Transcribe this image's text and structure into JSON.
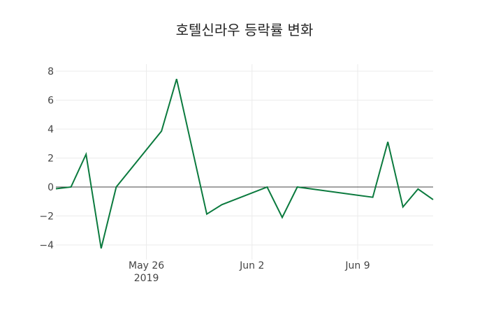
{
  "chart_data": {
    "type": "line",
    "title": "호텔신라우 등락률 변화",
    "xlabel": "",
    "ylabel": "",
    "ylim": [
      -4.8,
      8.0
    ],
    "yticks": [
      8,
      6,
      4,
      2,
      0,
      -2,
      -4
    ],
    "ytick_labels": [
      "8",
      "6",
      "4",
      "2",
      "0",
      "−2",
      "−4"
    ],
    "xticks": [
      {
        "date": "2019-05-26",
        "label": "May 26",
        "sublabel": "2019"
      },
      {
        "date": "2019-06-02",
        "label": "Jun 2",
        "sublabel": ""
      },
      {
        "date": "2019-06-09",
        "label": "Jun 9",
        "sublabel": ""
      }
    ],
    "xlim": [
      "2019-05-20",
      "2019-06-14"
    ],
    "grid": true,
    "zero_line": true,
    "legend": null,
    "line_color": "#0b7a3e",
    "series": [
      {
        "name": "등락률",
        "x": [
          "2019-05-20",
          "2019-05-21",
          "2019-05-22",
          "2019-05-23",
          "2019-05-24",
          "2019-05-27",
          "2019-05-28",
          "2019-05-30",
          "2019-05-31",
          "2019-06-03",
          "2019-06-04",
          "2019-06-05",
          "2019-06-10",
          "2019-06-11",
          "2019-06-12",
          "2019-06-13",
          "2019-06-14"
        ],
        "values": [
          -0.12,
          0.0,
          2.26,
          -4.24,
          0.0,
          3.86,
          7.46,
          -1.87,
          -1.22,
          0.0,
          -2.1,
          0.0,
          -0.71,
          3.12,
          -1.38,
          -0.14,
          -0.87
        ]
      }
    ]
  }
}
